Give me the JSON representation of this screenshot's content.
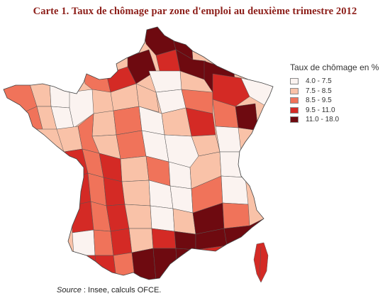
{
  "title": "Carte 1. Taux de chômage par zone d'emploi au deuxième trimestre 2012",
  "legend": {
    "title": "Taux de chômage en %",
    "classes": [
      {
        "label": "4.0 - 7.5",
        "color": "#fbf3f0"
      },
      {
        "label": "7.5 - 8.5",
        "color": "#f9c2a8"
      },
      {
        "label": "8.5 - 9.5",
        "color": "#f0735a"
      },
      {
        "label": "9.5 - 11.0",
        "color": "#d42a25"
      },
      {
        "label": "11.0 - 18.0",
        "color": "#6e0a10"
      }
    ]
  },
  "source": {
    "prefix": "Source",
    "text": " : Insee, calculs OFCE."
  }
}
